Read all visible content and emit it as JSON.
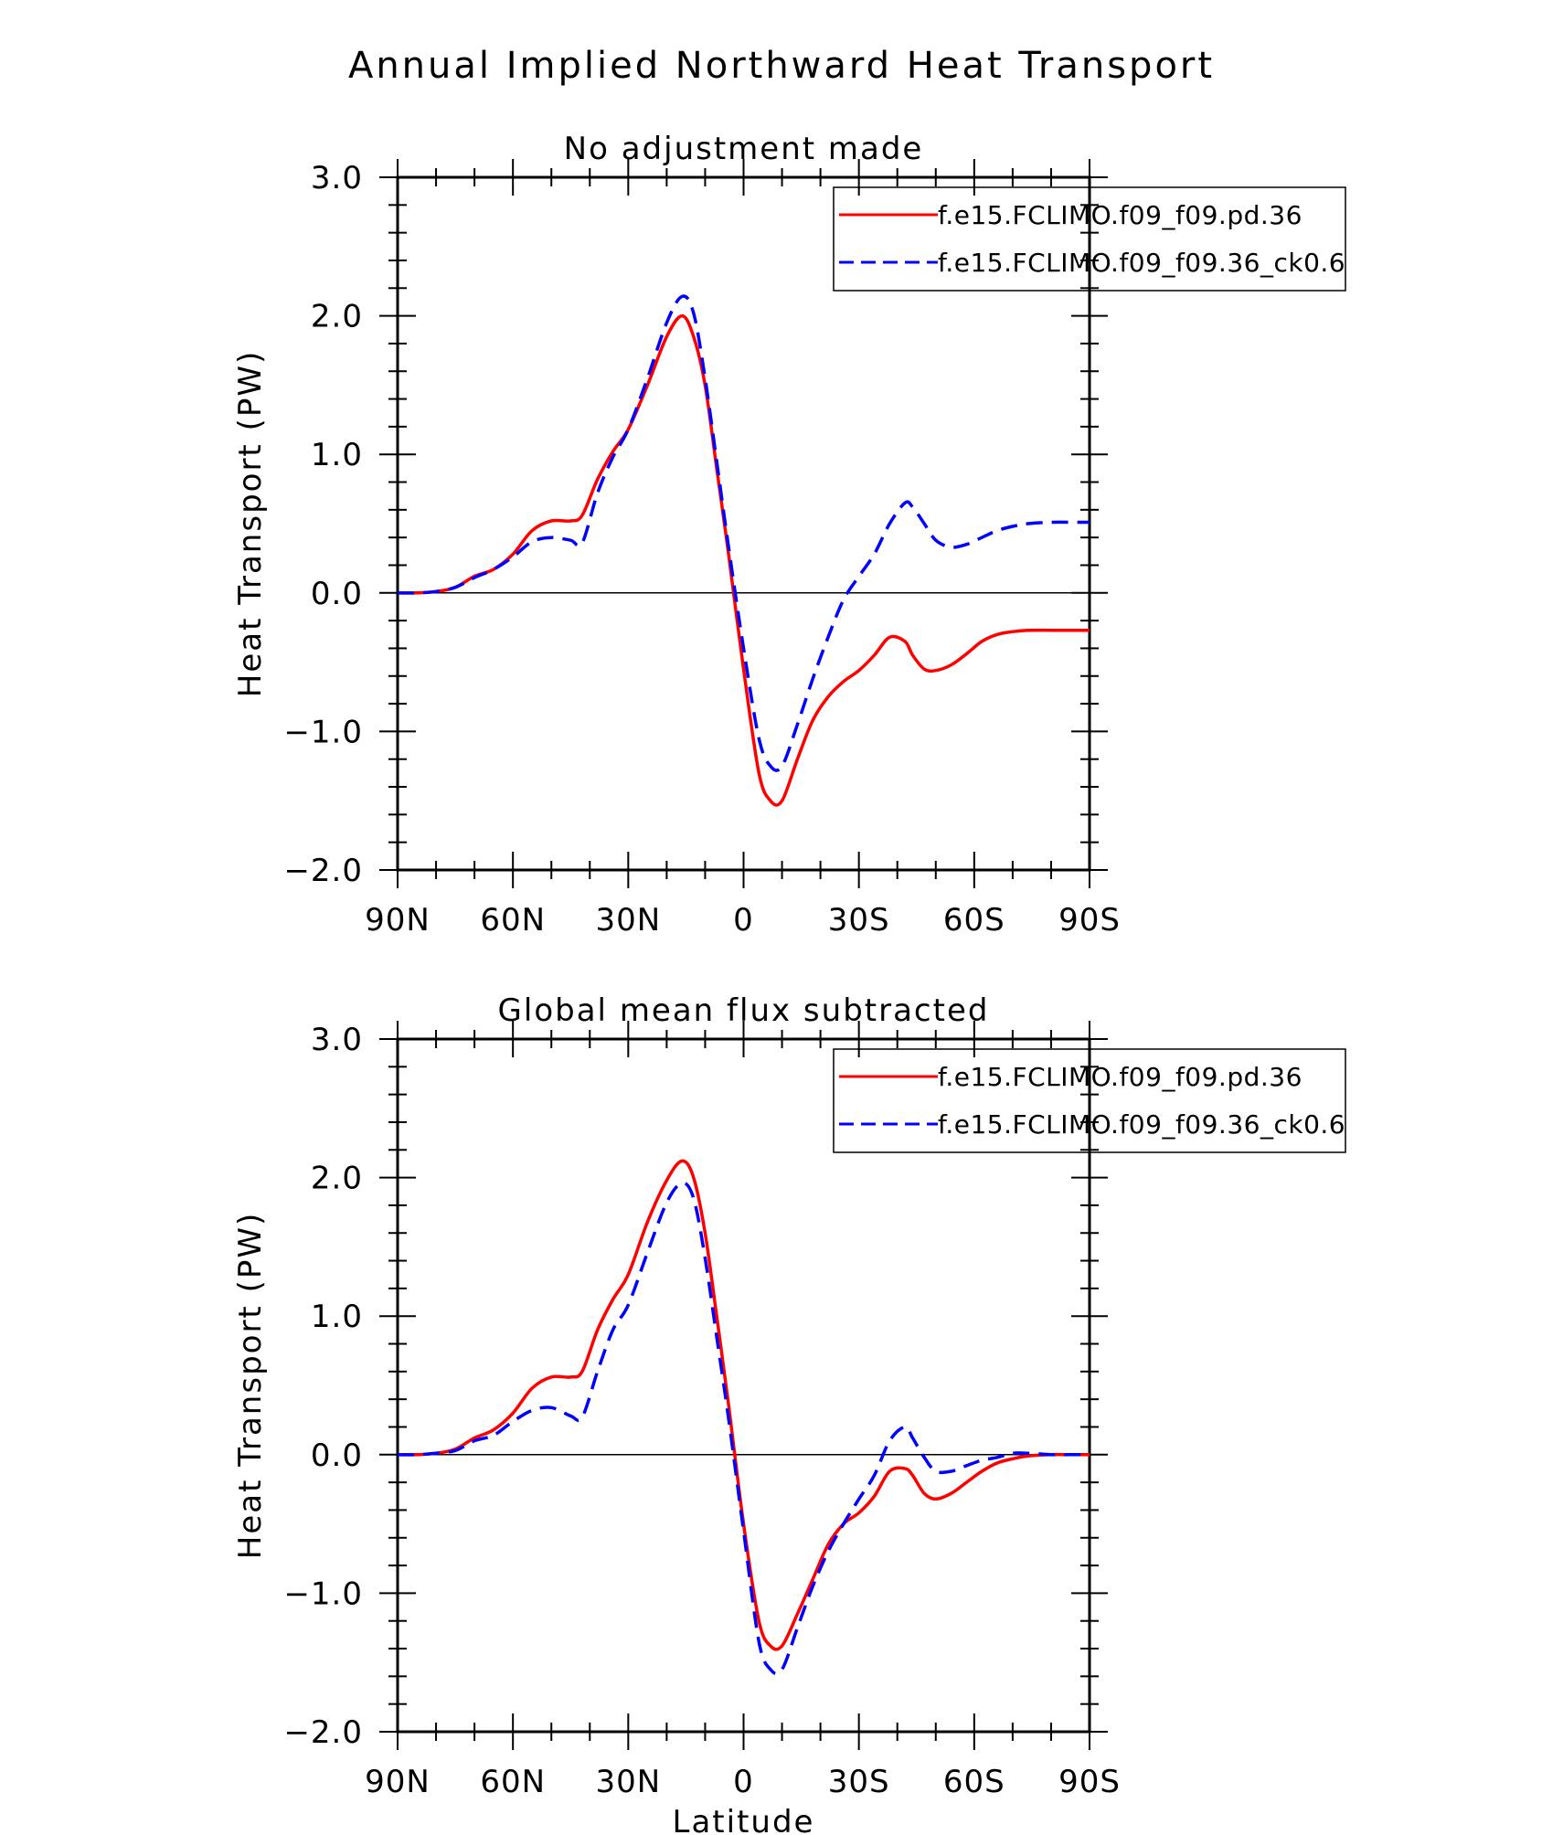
{
  "figure": {
    "title": "Annual Implied Northward Heat Transport"
  },
  "colors": {
    "series_1": "#ff0000",
    "series_2": "#0000ff",
    "axis": "#000000"
  },
  "chart_data": [
    {
      "type": "line",
      "title": "No adjustment made",
      "xlabel": "",
      "ylabel": "Heat Transport (PW)",
      "xlim": [
        90,
        -90
      ],
      "ylim": [
        -2.0,
        3.0
      ],
      "xticks": [
        90,
        60,
        30,
        0,
        -30,
        -60,
        -90
      ],
      "xtick_labels": [
        "90N",
        "60N",
        "30N",
        "0",
        "30S",
        "60S",
        "90S"
      ],
      "yticks": [
        3.0,
        2.0,
        1.0,
        0.0,
        -1.0,
        -2.0
      ],
      "ytick_labels": [
        "3.0",
        "2.0",
        "1.0",
        "0.0",
        "−1.0",
        "−2.0"
      ],
      "zero_line": true,
      "legend_position": "top-right",
      "series": [
        {
          "name": "f.e15.FCLIMO.f09_f09.pd.36",
          "color": "#ff0000",
          "dash": "solid",
          "x": [
            90,
            85,
            80,
            75,
            70,
            65,
            60,
            55,
            50,
            45,
            42,
            38,
            34,
            30,
            25,
            20,
            16,
            13,
            10,
            7,
            4,
            0,
            -4,
            -7,
            -10,
            -14,
            -18,
            -22,
            -26,
            -30,
            -34,
            -38,
            -42,
            -44,
            -47,
            -50,
            -54,
            -58,
            -62,
            -66,
            -70,
            -74,
            -80,
            -85,
            -90
          ],
          "y": [
            0.0,
            0.0,
            0.01,
            0.04,
            0.12,
            0.17,
            0.28,
            0.45,
            0.52,
            0.52,
            0.56,
            0.82,
            1.02,
            1.18,
            1.5,
            1.85,
            2.0,
            1.85,
            1.5,
            0.9,
            0.3,
            -0.55,
            -1.3,
            -1.5,
            -1.5,
            -1.2,
            -0.92,
            -0.75,
            -0.64,
            -0.56,
            -0.45,
            -0.32,
            -0.35,
            -0.45,
            -0.55,
            -0.56,
            -0.52,
            -0.44,
            -0.35,
            -0.3,
            -0.28,
            -0.27,
            -0.27,
            -0.27,
            -0.27
          ]
        },
        {
          "name": "f.e15.FCLIMO.f09_f09.36_ck0.6",
          "color": "#0000ff",
          "dash": "dashed",
          "x": [
            90,
            85,
            80,
            75,
            70,
            65,
            60,
            55,
            50,
            45,
            42,
            38,
            34,
            30,
            25,
            20,
            16,
            13,
            10,
            7,
            4,
            0,
            -4,
            -7,
            -10,
            -14,
            -18,
            -22,
            -26,
            -30,
            -34,
            -38,
            -42,
            -44,
            -47,
            -50,
            -54,
            -58,
            -62,
            -66,
            -70,
            -74,
            -80,
            -85,
            -90
          ],
          "y": [
            0.0,
            0.0,
            0.01,
            0.04,
            0.11,
            0.17,
            0.26,
            0.37,
            0.4,
            0.38,
            0.36,
            0.72,
            0.98,
            1.18,
            1.55,
            1.95,
            2.14,
            2.02,
            1.55,
            0.95,
            0.35,
            -0.4,
            -1.05,
            -1.25,
            -1.25,
            -0.95,
            -0.62,
            -0.32,
            -0.05,
            0.12,
            0.28,
            0.5,
            0.65,
            0.62,
            0.5,
            0.38,
            0.33,
            0.35,
            0.4,
            0.45,
            0.48,
            0.5,
            0.51,
            0.51,
            0.51
          ]
        }
      ]
    },
    {
      "type": "line",
      "title": "Global mean flux subtracted",
      "xlabel": "Latitude",
      "ylabel": "Heat Transport (PW)",
      "xlim": [
        90,
        -90
      ],
      "ylim": [
        -2.0,
        3.0
      ],
      "xticks": [
        90,
        60,
        30,
        0,
        -30,
        -60,
        -90
      ],
      "xtick_labels": [
        "90N",
        "60N",
        "30N",
        "0",
        "30S",
        "60S",
        "90S"
      ],
      "yticks": [
        3.0,
        2.0,
        1.0,
        0.0,
        -1.0,
        -2.0
      ],
      "ytick_labels": [
        "3.0",
        "2.0",
        "1.0",
        "0.0",
        "−1.0",
        "−2.0"
      ],
      "zero_line": true,
      "legend_position": "top-right",
      "series": [
        {
          "name": "f.e15.FCLIMO.f09_f09.pd.36",
          "color": "#ff0000",
          "dash": "solid",
          "x": [
            90,
            85,
            80,
            75,
            70,
            65,
            60,
            55,
            50,
            45,
            42,
            38,
            34,
            30,
            25,
            20,
            16,
            13,
            10,
            7,
            4,
            0,
            -4,
            -7,
            -10,
            -14,
            -18,
            -22,
            -26,
            -30,
            -34,
            -38,
            -42,
            -44,
            -47,
            -50,
            -54,
            -58,
            -62,
            -66,
            -70,
            -74,
            -80,
            -85,
            -90
          ],
          "y": [
            0.0,
            0.0,
            0.01,
            0.04,
            0.12,
            0.18,
            0.3,
            0.48,
            0.56,
            0.56,
            0.6,
            0.9,
            1.12,
            1.3,
            1.68,
            1.98,
            2.12,
            2.0,
            1.6,
            1.0,
            0.38,
            -0.5,
            -1.2,
            -1.38,
            -1.38,
            -1.15,
            -0.9,
            -0.65,
            -0.5,
            -0.42,
            -0.3,
            -0.12,
            -0.1,
            -0.15,
            -0.28,
            -0.32,
            -0.28,
            -0.2,
            -0.12,
            -0.06,
            -0.03,
            -0.01,
            0.0,
            0.0,
            0.0
          ]
        },
        {
          "name": "f.e15.FCLIMO.f09_f09.36_ck0.6",
          "color": "#0000ff",
          "dash": "dashed",
          "x": [
            90,
            85,
            80,
            75,
            70,
            65,
            60,
            55,
            50,
            45,
            42,
            38,
            34,
            30,
            25,
            20,
            16,
            13,
            10,
            7,
            4,
            0,
            -4,
            -7,
            -10,
            -14,
            -18,
            -22,
            -26,
            -30,
            -34,
            -38,
            -42,
            -44,
            -47,
            -50,
            -54,
            -58,
            -62,
            -66,
            -70,
            -74,
            -80,
            -85,
            -90
          ],
          "y": [
            0.0,
            0.0,
            0.01,
            0.03,
            0.1,
            0.14,
            0.24,
            0.32,
            0.34,
            0.28,
            0.27,
            0.6,
            0.9,
            1.08,
            1.46,
            1.82,
            1.96,
            1.85,
            1.42,
            0.85,
            0.28,
            -0.55,
            -1.35,
            -1.55,
            -1.55,
            -1.25,
            -0.95,
            -0.7,
            -0.5,
            -0.32,
            -0.15,
            0.1,
            0.2,
            0.12,
            -0.02,
            -0.12,
            -0.12,
            -0.08,
            -0.04,
            -0.02,
            0.01,
            0.01,
            0.0,
            0.0,
            0.0
          ]
        }
      ]
    }
  ]
}
